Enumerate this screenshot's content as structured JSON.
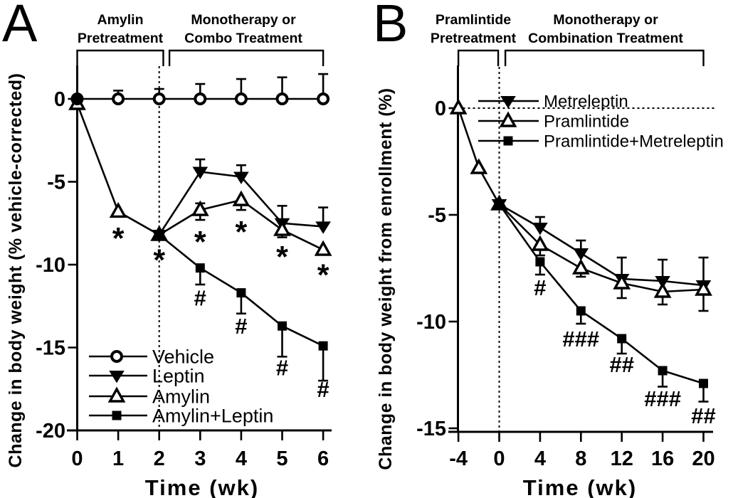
{
  "figure": {
    "background": "#ffffff",
    "ink": "#000000"
  },
  "chart_data": [
    {
      "panel_letter": "A",
      "type": "line",
      "x_label": "Time (wk)",
      "y_label": "Change in body weight (% vehicle-corrected)",
      "x_ticks": [
        0,
        1,
        2,
        3,
        4,
        5,
        6
      ],
      "y_ticks": [
        0,
        -5,
        -10,
        -15,
        -20
      ],
      "xlim": [
        0,
        6
      ],
      "ylim": [
        2,
        -20
      ],
      "grid": false,
      "dashed_vline_x": 2,
      "dashed_hline_y": null,
      "legend_position": "lower-left",
      "phase_brackets": [
        {
          "line1": "Amylin",
          "line2": "Pretreatment",
          "x_start": 0,
          "x_end": 2.1
        },
        {
          "line1": "Monotherapy or",
          "line2": "Combo Treatment",
          "x_start": 2.25,
          "x_end": 6
        }
      ],
      "series": [
        {
          "name": "Vehicle",
          "marker": "circle-open",
          "x": [
            0,
            1,
            2,
            3,
            4,
            5,
            6
          ],
          "y": [
            0,
            0,
            0,
            0,
            0,
            0,
            0
          ],
          "err_up": [
            0,
            0.5,
            0.6,
            0.9,
            1.2,
            1.3,
            1.5
          ],
          "err_down": [
            0,
            0,
            0,
            0,
            0,
            0,
            0
          ],
          "filled_point_indices": [
            0
          ]
        },
        {
          "name": "Leptin",
          "marker": "triangle-down-filled",
          "x": [
            2,
            3,
            4,
            5,
            6
          ],
          "y": [
            -8.2,
            -4.4,
            -4.7,
            -7.5,
            -7.7
          ],
          "err_up": [
            0,
            0.75,
            0.7,
            1.05,
            1.15
          ],
          "err_down": [
            0,
            0,
            0,
            0,
            0
          ],
          "filled_point_indices": []
        },
        {
          "name": "Amylin",
          "marker": "triangle-up-open",
          "x": [
            0,
            1,
            2,
            3,
            4,
            5,
            6
          ],
          "y": [
            -0.3,
            -6.8,
            -8.2,
            -6.7,
            -6.1,
            -7.9,
            -9.1
          ],
          "err_up": [
            0,
            0,
            0,
            0.4,
            0,
            0,
            0
          ],
          "err_down": [
            0,
            0,
            0,
            0.6,
            0.6,
            0.45,
            0.3
          ],
          "filled_point_indices": []
        },
        {
          "name": "Amylin+Leptin",
          "marker": "square-filled",
          "x": [
            2,
            3,
            4,
            5,
            6
          ],
          "y": [
            -8.2,
            -10.2,
            -11.7,
            -13.7,
            -14.9
          ],
          "err_up": [
            0,
            0,
            0,
            0,
            0
          ],
          "err_down": [
            0,
            1.0,
            1.25,
            1.85,
            2.1
          ],
          "filled_point_indices": []
        }
      ],
      "annotations": [
        {
          "text": "*",
          "x": 1,
          "y": -8.1
        },
        {
          "text": "*",
          "x": 2,
          "y": -9.4
        },
        {
          "text": "*",
          "x": 3,
          "y": -8.3
        },
        {
          "text": "*",
          "x": 4,
          "y": -7.7
        },
        {
          "text": "*",
          "x": 5,
          "y": -9.2
        },
        {
          "text": "*",
          "x": 6,
          "y": -10.3
        },
        {
          "text": "#",
          "x": 3,
          "y": -12.0
        },
        {
          "text": "#",
          "x": 4,
          "y": -13.7
        },
        {
          "text": "#",
          "x": 5,
          "y": -16.2
        },
        {
          "text": "#",
          "x": 6,
          "y": -17.5
        }
      ]
    },
    {
      "panel_letter": "B",
      "type": "line",
      "x_label": "Time (wk)",
      "y_label": "Change in body weight from enrollment (%)",
      "x_ticks": [
        -4,
        0,
        4,
        8,
        12,
        16,
        20
      ],
      "y_ticks": [
        0,
        -5,
        -10,
        -15
      ],
      "xlim": [
        -4,
        20
      ],
      "ylim": [
        2,
        -15
      ],
      "grid": false,
      "dashed_vline_x": 0,
      "dashed_hline_y": 0,
      "legend_position": "upper-right",
      "phase_brackets": [
        {
          "line1": "Pramlintide",
          "line2": "Pretreatment",
          "x_start": -4,
          "x_end": -0.1
        },
        {
          "line1": "Monotherapy or",
          "line2": "Combination Treatment",
          "x_start": 0.6,
          "x_end": 20
        }
      ],
      "series": [
        {
          "name": "Metreleptin",
          "marker": "triangle-down-filled",
          "x": [
            0,
            4,
            8,
            12,
            16,
            20
          ],
          "y": [
            -4.5,
            -5.6,
            -6.8,
            -8.0,
            -8.1,
            -8.3
          ],
          "err_up": [
            0,
            0.5,
            0.6,
            1.0,
            1.0,
            1.3
          ],
          "err_down": [
            0,
            0,
            0,
            0,
            0,
            0
          ],
          "filled_point_indices": []
        },
        {
          "name": "Pramlintide",
          "marker": "triangle-up-open",
          "x": [
            -4,
            -2,
            0,
            4,
            8,
            12,
            16,
            20
          ],
          "y": [
            0,
            -2.8,
            -4.5,
            -6.4,
            -7.5,
            -8.2,
            -8.6,
            -8.5
          ],
          "err_up": [
            0,
            0,
            0,
            0,
            0,
            0,
            0,
            0
          ],
          "err_down": [
            0,
            0,
            0,
            0.5,
            0.4,
            0.7,
            0.6,
            1.0
          ],
          "filled_point_indices": []
        },
        {
          "name": "Pramlintide+Metreleptin",
          "marker": "square-filled",
          "x": [
            0,
            4,
            8,
            12,
            16,
            20
          ],
          "y": [
            -4.5,
            -7.2,
            -9.5,
            -10.8,
            -12.3,
            -12.9
          ],
          "err_up": [
            0,
            0,
            0,
            0,
            0,
            0
          ],
          "err_down": [
            0,
            0.6,
            0.6,
            0.7,
            0.75,
            0.85
          ],
          "filled_point_indices": []
        }
      ],
      "annotations": [
        {
          "text": "#",
          "x": 4,
          "y": -8.4
        },
        {
          "text": "###",
          "x": 8,
          "y": -10.8
        },
        {
          "text": "##",
          "x": 12,
          "y": -12.0
        },
        {
          "text": "###",
          "x": 16,
          "y": -13.6
        },
        {
          "text": "##",
          "x": 20,
          "y": -14.4
        }
      ]
    }
  ]
}
